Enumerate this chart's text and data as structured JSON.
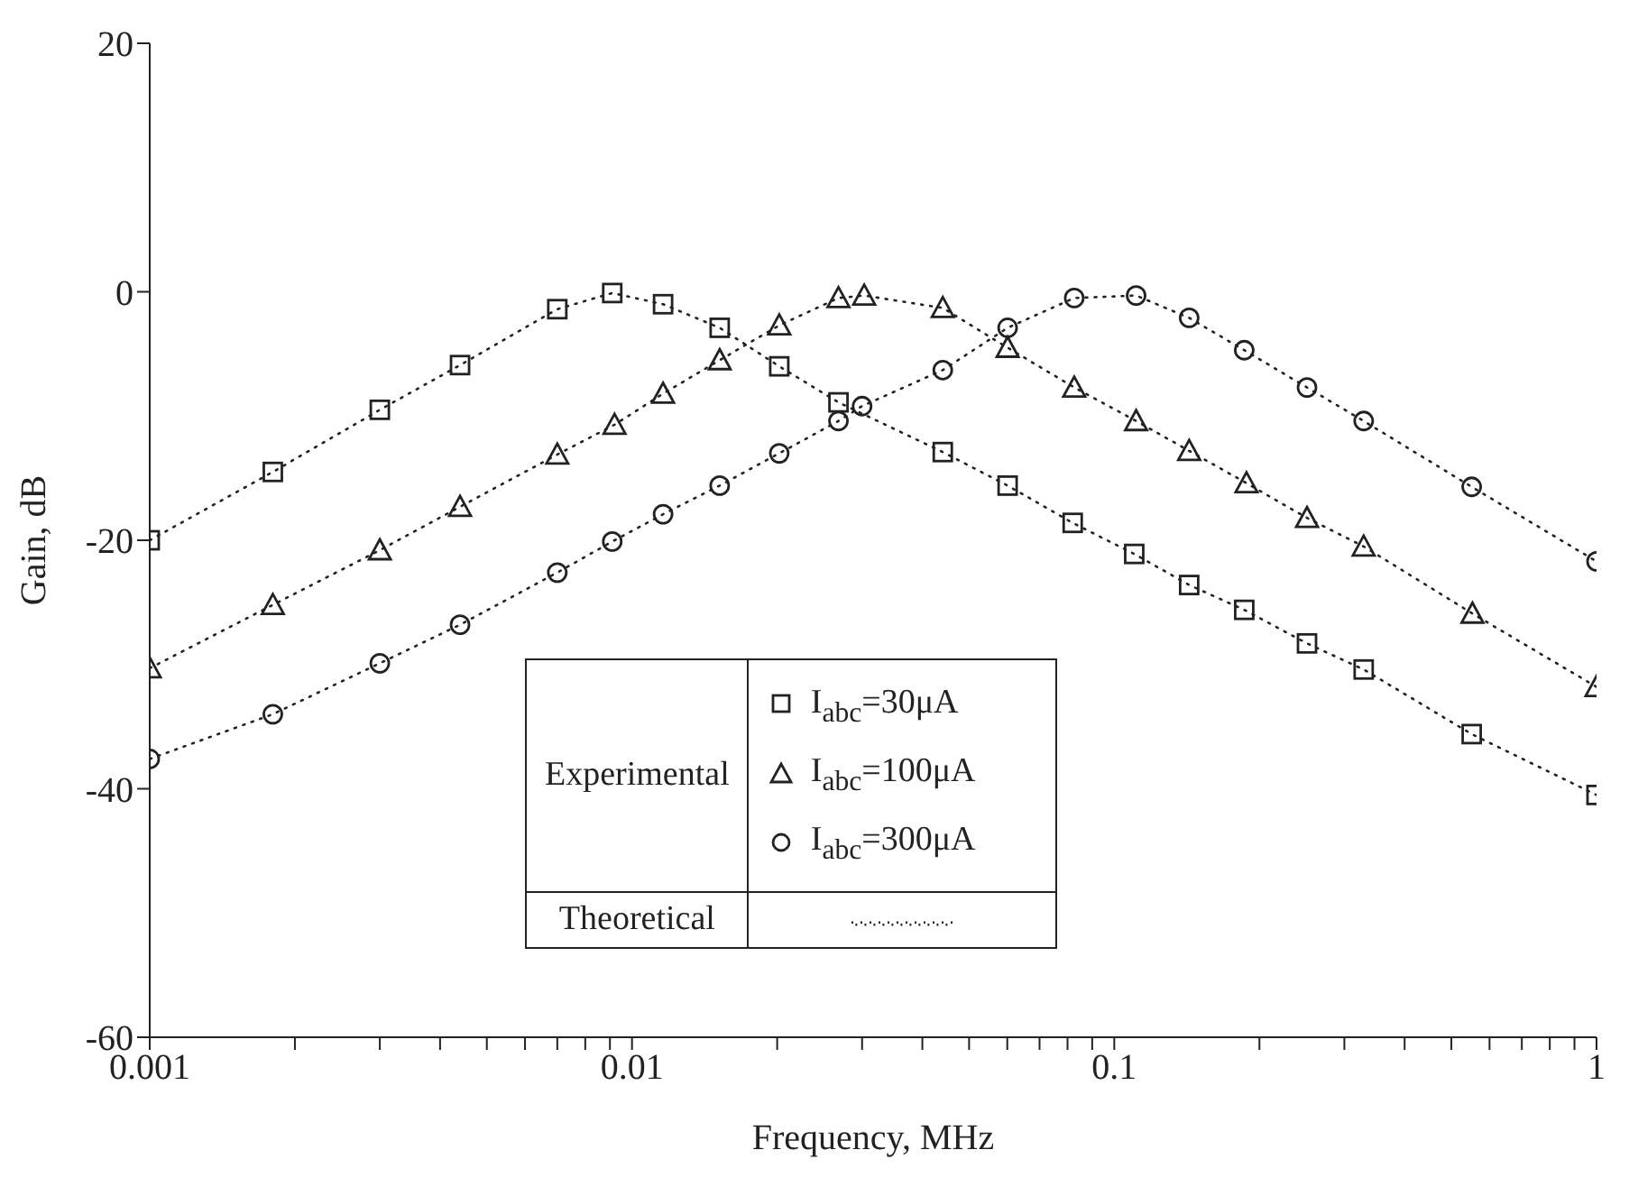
{
  "chart_data": {
    "type": "line",
    "xlabel": "Frequency, MHz",
    "ylabel": "Gain, dB",
    "log": "x",
    "xlim": [
      0.001,
      1
    ],
    "ylim": [
      -60,
      20
    ],
    "xticks": [
      {
        "value": 0.001,
        "label": "0.001"
      },
      {
        "value": 0.002,
        "label": null
      },
      {
        "value": 0.003,
        "label": null
      },
      {
        "value": 0.004,
        "label": null
      },
      {
        "value": 0.005,
        "label": null
      },
      {
        "value": 0.006,
        "label": null
      },
      {
        "value": 0.007,
        "label": null
      },
      {
        "value": 0.008,
        "label": null
      },
      {
        "value": 0.009,
        "label": null
      },
      {
        "value": 0.01,
        "label": "0.01"
      },
      {
        "value": 0.02,
        "label": null
      },
      {
        "value": 0.03,
        "label": null
      },
      {
        "value": 0.04,
        "label": null
      },
      {
        "value": 0.05,
        "label": null
      },
      {
        "value": 0.06,
        "label": null
      },
      {
        "value": 0.07,
        "label": null
      },
      {
        "value": 0.08,
        "label": null
      },
      {
        "value": 0.09,
        "label": null
      },
      {
        "value": 0.1,
        "label": "0.1"
      },
      {
        "value": 0.2,
        "label": null
      },
      {
        "value": 0.3,
        "label": null
      },
      {
        "value": 0.4,
        "label": null
      },
      {
        "value": 0.5,
        "label": null
      },
      {
        "value": 0.6,
        "label": null
      },
      {
        "value": 0.7,
        "label": null
      },
      {
        "value": 0.8,
        "label": null
      },
      {
        "value": 0.9,
        "label": null
      },
      {
        "value": 1,
        "label": "1"
      }
    ],
    "yticks": [
      -60,
      -40,
      -20,
      0,
      20
    ],
    "grid": false,
    "legend": "bottom",
    "legend_title": "Experimental",
    "line_style": "dotted",
    "annotations": [
      "Theoretical"
    ],
    "series": [
      {
        "name": "I$_{abc}$=30μA",
        "color": "#222222",
        "marker": "square",
        "x": [
          0.001,
          0.0018,
          0.003,
          0.0044,
          0.007,
          0.0091,
          0.0116,
          0.0152,
          0.0202,
          0.0268,
          0.0441,
          0.0601,
          0.082,
          0.11,
          0.143,
          0.186,
          0.251,
          0.329,
          0.551,
          1
        ],
        "values": [
          -20,
          -14.5,
          -9.5,
          -5.9,
          -1.4,
          -0.1,
          -1,
          -2.9,
          -6,
          -8.9,
          -12.9,
          -15.6,
          -18.6,
          -21.1,
          -23.6,
          -25.6,
          -28.3,
          -30.4,
          -35.6,
          -40.5
        ]
      },
      {
        "name": "I$_{abc}$=100μA",
        "color": "#222222",
        "marker": "triangle",
        "x": [
          0.001,
          0.0018,
          0.003,
          0.0044,
          0.007,
          0.0092,
          0.0116,
          0.0152,
          0.0202,
          0.0268,
          0.0303,
          0.0441,
          0.0601,
          0.0826,
          0.111,
          0.143,
          0.188,
          0.251,
          0.329,
          0.553,
          1
        ],
        "values": [
          -30.3,
          -25.2,
          -20.8,
          -17.3,
          -13.1,
          -10.7,
          -8.2,
          -5.5,
          -2.7,
          -0.5,
          -0.3,
          -1.3,
          -4.5,
          -7.7,
          -10.4,
          -12.8,
          -15.4,
          -18.2,
          -20.5,
          -25.9,
          -31.8
        ]
      },
      {
        "name": "I$_{abc}$=300μA",
        "color": "#222222",
        "marker": "circle",
        "x": [
          0.001,
          0.0018,
          0.003,
          0.0044,
          0.007,
          0.0091,
          0.0116,
          0.0152,
          0.0202,
          0.0268,
          0.03,
          0.0441,
          0.0601,
          0.0826,
          0.111,
          0.143,
          0.186,
          0.251,
          0.329,
          0.551,
          1
        ],
        "values": [
          -37.6,
          -34,
          -29.9,
          -26.8,
          -22.6,
          -20.1,
          -17.9,
          -15.6,
          -13,
          -10.4,
          -9.2,
          -6.3,
          -2.9,
          -0.5,
          -0.3,
          -2.1,
          -4.7,
          -7.7,
          -10.4,
          -15.7,
          -21.7
        ]
      }
    ]
  }
}
